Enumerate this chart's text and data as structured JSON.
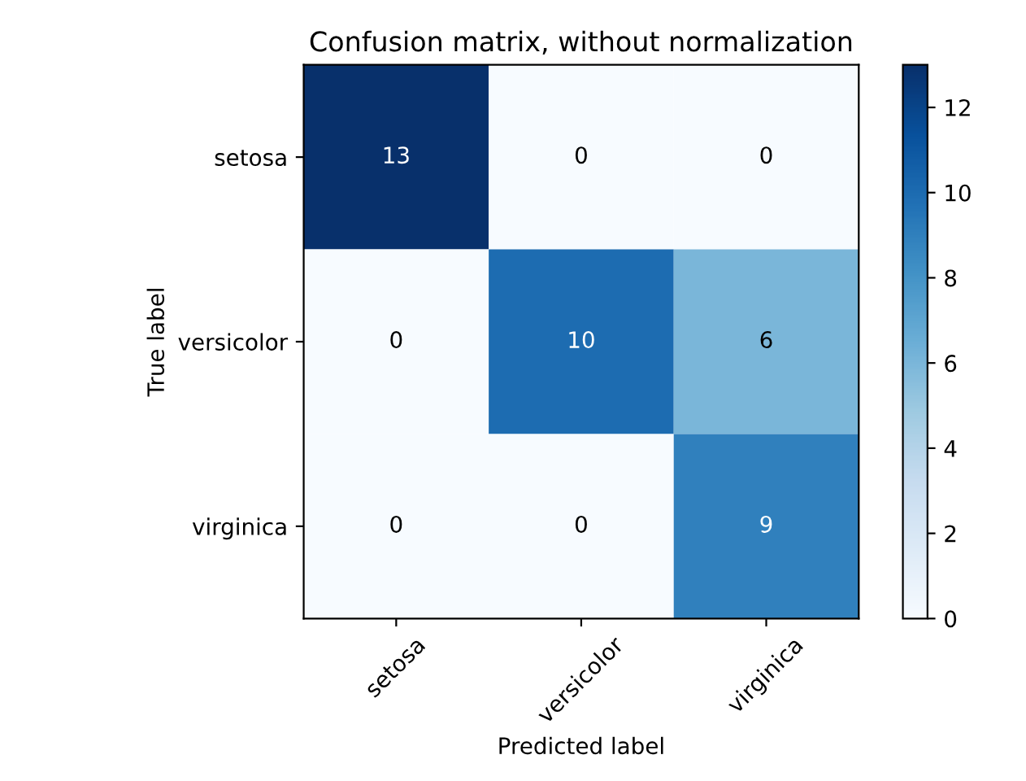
{
  "chart_data": {
    "type": "heatmap",
    "title": "Confusion matrix, without normalization",
    "xlabel": "Predicted label",
    "ylabel": "True label",
    "categories": [
      "setosa",
      "versicolor",
      "virginica"
    ],
    "y_categories": [
      "setosa",
      "versicolor",
      "virginica"
    ],
    "cells": [
      [
        13,
        0,
        0
      ],
      [
        0,
        10,
        6
      ],
      [
        0,
        0,
        9
      ]
    ],
    "clim": [
      0,
      13
    ],
    "cticks": [
      0,
      2,
      4,
      6,
      8,
      10,
      12
    ],
    "data_labels": true,
    "grid": false
  }
}
